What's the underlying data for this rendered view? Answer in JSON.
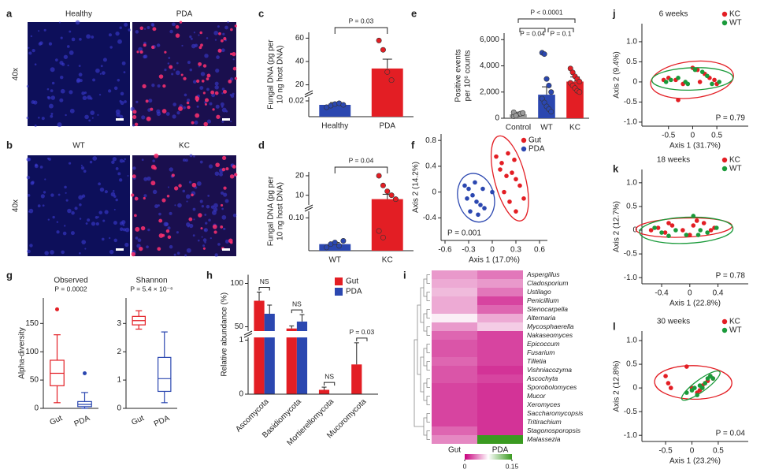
{
  "images": [
    {
      "label": "a",
      "columns": [
        "Healthy",
        "PDA"
      ],
      "side_label": "40x"
    },
    {
      "label": "b",
      "columns": [
        "WT",
        "KC"
      ],
      "side_label": "40x"
    }
  ],
  "chart_data": [
    {
      "type": "bar",
      "label": "c",
      "ylabel": [
        "Fungal DNA (pg per",
        "10 ng host DNA)"
      ],
      "categories": [
        "Healthy",
        "PDA"
      ],
      "colors": [
        "#2b47b0",
        "#e31e24"
      ],
      "values": [
        0.015,
        34
      ],
      "errors": [
        0.003,
        8
      ],
      "points": [
        [
          0.012,
          0.014,
          0.016,
          0.017,
          0.015
        ],
        [
          58,
          50,
          31,
          24
        ]
      ],
      "segments": [
        {
          "ylim": [
            0,
            0.025
          ],
          "yticks": [
            0.02
          ]
        },
        {
          "ylim": [
            15,
            65
          ],
          "yticks": [
            20,
            40,
            60
          ]
        }
      ],
      "annotation": "P = 0.03"
    },
    {
      "type": "bar",
      "label": "d",
      "ylabel": [
        "Fungal DNA (pg per",
        "10 ng host DNA)"
      ],
      "categories": [
        "WT",
        "KC"
      ],
      "colors": [
        "#2b47b0",
        "#e31e24"
      ],
      "values": [
        0.02,
        8
      ],
      "errors": [
        0.005,
        2.5
      ],
      "points": [
        [
          0.01,
          0.02,
          0.025,
          0.015,
          0.03
        ],
        [
          20,
          15,
          12,
          10,
          8,
          0.06,
          0.04
        ]
      ],
      "segments": [
        {
          "ylim": [
            0,
            0.12
          ],
          "yticks": [
            {
              "value": 0.1,
              "label": "0.10"
            }
          ]
        },
        {
          "ylim": [
            5,
            22
          ],
          "yticks": [
            10,
            20
          ]
        }
      ],
      "annotation": "P = 0.04"
    },
    {
      "type": "bar",
      "label": "e",
      "ylabel": [
        "Positive events",
        "per 10⁶ counts"
      ],
      "categories": [
        "Control",
        "WT",
        "KC"
      ],
      "colors": [
        "#9a9a9a",
        "#2b47b0",
        "#e31e24"
      ],
      "values": [
        300,
        1800,
        2800
      ],
      "errors": [
        100,
        600,
        350
      ],
      "points": [
        [
          150,
          250,
          300,
          350,
          400,
          450,
          200
        ],
        [
          5000,
          4900,
          3000,
          2500,
          2000,
          1500,
          1200,
          900,
          700,
          500
        ],
        [
          3800,
          3500,
          3200,
          3000,
          2800,
          2700,
          2500,
          2300,
          2100,
          2000
        ]
      ],
      "ylim": [
        0,
        6500
      ],
      "yticks": [
        0,
        {
          "value": 2000,
          "label": "2,000"
        },
        {
          "value": 4000,
          "label": "4,000"
        },
        {
          "value": 6000,
          "label": "6,000"
        }
      ],
      "annotations": [
        "P < 0.0001",
        "P = 0.04",
        "P = 0.1"
      ]
    },
    {
      "type": "scatter",
      "label": "f",
      "xlabel": "Axis 1 (17.0%)",
      "ylabel": "Axis 2 (14.2%)",
      "xlim": [
        -0.65,
        0.7
      ],
      "ylim": [
        -0.75,
        0.9
      ],
      "xticks": [
        -0.6,
        -0.3,
        0,
        0.3,
        0.6
      ],
      "yticks": [
        -0.4,
        0,
        0.4,
        0.8
      ],
      "annotation": "P = 0.001",
      "series": [
        {
          "name": "Gut",
          "color": "#e31e24",
          "x": [
            0.05,
            0.12,
            0.2,
            0.25,
            0.3,
            0.35,
            0.15,
            0.22,
            0.4,
            0.3,
            0.1,
            0.28,
            0.18
          ],
          "values": [
            0.55,
            0.45,
            0.6,
            0.3,
            0.2,
            0.1,
            0.0,
            -0.15,
            -0.1,
            -0.3,
            0.35,
            0.5,
            0.25
          ]
        },
        {
          "name": "PDA",
          "color": "#2b47b0",
          "x": [
            -0.35,
            -0.3,
            -0.25,
            -0.2,
            -0.15,
            -0.1,
            -0.32,
            -0.22,
            -0.12,
            -0.28,
            -0.18,
            0.0
          ],
          "values": [
            0.1,
            0.05,
            -0.05,
            -0.15,
            -0.2,
            -0.25,
            -0.1,
            0.15,
            0.05,
            -0.3,
            -0.35,
            0.0
          ]
        }
      ]
    },
    {
      "type": "box",
      "label": "g",
      "ylabel": "Alpha-diversity",
      "panels": [
        {
          "title": "Observed",
          "annotation": "P = 0.0002",
          "categories": [
            "Gut",
            "PDA"
          ],
          "colors": [
            "#e31e24",
            "#2b47b0"
          ],
          "ylim": [
            0,
            195
          ],
          "yticks": [
            0,
            50,
            100,
            150
          ],
          "boxes": [
            {
              "min": 10,
              "q1": 40,
              "median": 62,
              "q3": 85,
              "max": 130,
              "outliers": [
                175
              ]
            },
            {
              "min": 0,
              "q1": 3,
              "median": 7,
              "q3": 12,
              "max": 28,
              "outliers": [
                62
              ]
            }
          ]
        },
        {
          "title": "Shannon",
          "annotation": "P = 5.4 × 10⁻⁶",
          "categories": [
            "Gut",
            "PDA"
          ],
          "colors": [
            "#e31e24",
            "#2b47b0"
          ],
          "ylim": [
            0,
            3.9
          ],
          "yticks": [
            0,
            1,
            2,
            3
          ],
          "boxes": [
            {
              "min": 2.8,
              "q1": 2.95,
              "median": 3.1,
              "q3": 3.25,
              "max": 3.45,
              "outliers": []
            },
            {
              "min": 0.2,
              "q1": 0.6,
              "median": 1.05,
              "q3": 1.8,
              "max": 2.7,
              "outliers": []
            }
          ]
        }
      ]
    },
    {
      "type": "grouped_bar",
      "label": "h",
      "ylabel": "Relative abundance (%)",
      "categories": [
        "Ascomycota",
        "Basidiomycota",
        "Mortierellomycota",
        "Mucoromycota"
      ],
      "segments": [
        {
          "ylim": [
            0,
            1.05
          ],
          "yticks": [
            0,
            1
          ]
        },
        {
          "ylim": [
            45,
            110
          ],
          "yticks": [
            50,
            100
          ]
        }
      ],
      "series": [
        {
          "name": "Gut",
          "color": "#e31e24",
          "values": [
            80,
            48,
            0.08,
            0.55
          ],
          "errors": [
            10,
            3,
            0.05,
            0.4
          ]
        },
        {
          "name": "PDA",
          "color": "#2b47b0",
          "values": [
            65,
            56,
            0,
            0
          ],
          "errors": [
            10,
            8,
            0,
            0
          ]
        }
      ],
      "annotations": [
        "NS",
        "NS",
        "NS",
        "P = 0.03"
      ]
    },
    {
      "type": "heatmap",
      "label": "i",
      "columns": [
        "Gut",
        "PDA"
      ],
      "rows": [
        "Aspergillus",
        "Cladosporium",
        "Ustilago",
        "Penicillium",
        "Stenocarpella",
        "Alternaria",
        "Mycosphaerella",
        "Nakaseomyces",
        "Epicoccum",
        "Fusarium",
        "Tilletia",
        "Vishniacozyma",
        "Ascochyta",
        "Sporobolomyces",
        "Mucor",
        "Xeromyces",
        "Saccharomycopsis",
        "Tritirachium",
        "Stagonosporopsis",
        "Malassezia"
      ],
      "values": [
        [
          0.045,
          0.035
        ],
        [
          0.05,
          0.045
        ],
        [
          0.055,
          0.035
        ],
        [
          0.05,
          0.02
        ],
        [
          0.05,
          0.03
        ],
        [
          0.07,
          0.05
        ],
        [
          0.045,
          0.06
        ],
        [
          0.03,
          0.02
        ],
        [
          0.025,
          0.02
        ],
        [
          0.025,
          0.02
        ],
        [
          0.03,
          0.02
        ],
        [
          0.025,
          0.015
        ],
        [
          0.025,
          0.02
        ],
        [
          0.02,
          0.015
        ],
        [
          0.02,
          0.015
        ],
        [
          0.02,
          0.015
        ],
        [
          0.02,
          0.015
        ],
        [
          0.02,
          0.015
        ],
        [
          0.03,
          0.015
        ],
        [
          0.04,
          0.15
        ]
      ],
      "colors": [
        "#c8007d",
        "#ffffff",
        "#3a9a20"
      ],
      "colorbar": {
        "lim": [
          0,
          0.15
        ],
        "ticks": [
          0,
          0.15
        ]
      }
    },
    {
      "type": "scatter",
      "label": "j",
      "title": "6 weeks",
      "xlabel": "Axis 1 (31.7%)",
      "ylabel": "Axis 2 (9.4%)",
      "xlim": [
        -1.05,
        1.15
      ],
      "ylim": [
        -1.1,
        1.45
      ],
      "xticks": [
        -0.5,
        0,
        0.5
      ],
      "yticks": [
        {
          "value": -1,
          "label": "-1.0"
        },
        -0.5,
        0,
        0.5,
        {
          "value": 1,
          "label": "1.0"
        }
      ],
      "annotation": "P = 0.79",
      "series": [
        {
          "name": "KC",
          "color": "#e31e24",
          "x": [
            -0.6,
            -0.5,
            -0.35,
            -0.2,
            0.0,
            0.1,
            0.25,
            0.35,
            0.45,
            0.5,
            -0.3,
            0.15
          ],
          "values": [
            0.05,
            0.1,
            0.05,
            -0.05,
            0.35,
            0.3,
            0.2,
            0.1,
            0.05,
            -0.05,
            -0.45,
            0.0
          ]
        },
        {
          "name": "WT",
          "color": "#1a9a3a",
          "x": [
            -0.55,
            -0.45,
            -0.3,
            -0.15,
            0.05,
            0.2,
            0.3,
            0.4,
            0.55,
            -0.1
          ],
          "values": [
            0.0,
            0.05,
            0.1,
            0.0,
            0.3,
            0.25,
            0.15,
            -0.05,
            0.0,
            -0.05
          ]
        }
      ]
    },
    {
      "type": "scatter",
      "label": "k",
      "title": "18 weeks",
      "xlabel": "Axis 1 (22.8%)",
      "ylabel": "Axis 2 (12.7%)",
      "xlim": [
        -0.68,
        0.83
      ],
      "ylim": [
        -1.13,
        1.28
      ],
      "xticks": [
        -0.4,
        0,
        0.4
      ],
      "yticks": [
        {
          "value": -1,
          "label": "-1.0"
        },
        -0.5,
        0,
        0.5,
        {
          "value": 1,
          "label": "1.0"
        }
      ],
      "annotation": "P = 0.78",
      "series": [
        {
          "name": "KC",
          "color": "#e31e24",
          "x": [
            -0.55,
            -0.45,
            -0.35,
            -0.25,
            -0.1,
            0.0,
            0.1,
            0.2,
            0.3,
            0.35,
            -0.3,
            0.05
          ],
          "values": [
            0.0,
            0.05,
            -0.05,
            0.1,
            0.0,
            -0.1,
            0.2,
            0.15,
            0.0,
            0.05,
            0.15,
            0.1
          ]
        },
        {
          "name": "WT",
          "color": "#1a9a3a",
          "x": [
            -0.5,
            -0.4,
            -0.2,
            -0.05,
            0.05,
            0.15,
            0.25,
            0.38,
            -0.3,
            0.12
          ],
          "values": [
            0.05,
            -0.05,
            0.0,
            -0.1,
            0.3,
            0.0,
            -0.05,
            0.05,
            -0.12,
            -0.1
          ]
        }
      ]
    },
    {
      "type": "scatter",
      "label": "l",
      "title": "30 weeks",
      "xlabel": "Axis 1 (23.2%)",
      "ylabel": "Axis 2 (12.8%)",
      "xlim": [
        -0.95,
        1.07
      ],
      "ylim": [
        -1.13,
        1.2
      ],
      "xticks": [
        -0.5,
        0,
        0.5
      ],
      "yticks": [
        {
          "value": -1,
          "label": "-1.0"
        },
        -0.5,
        0,
        0.5,
        {
          "value": 1,
          "label": "1.0"
        }
      ],
      "annotation": "P = 0.04",
      "series": [
        {
          "name": "KC",
          "color": "#e31e24",
          "x": [
            -0.5,
            -0.45,
            -0.4,
            -0.1,
            0.0,
            0.1,
            0.2,
            0.3,
            0.35,
            0.4,
            0.15,
            0.25
          ],
          "values": [
            0.25,
            0.1,
            0.0,
            0.45,
            0.0,
            -0.1,
            0.05,
            0.15,
            0.25,
            0.2,
            -0.05,
            0.1
          ]
        },
        {
          "name": "WT",
          "color": "#1a9a3a",
          "x": [
            -0.1,
            0.0,
            0.05,
            0.15,
            0.25,
            0.3,
            0.35,
            0.4,
            0.2,
            0.1
          ],
          "values": [
            -0.1,
            -0.05,
            0.0,
            0.05,
            0.1,
            0.2,
            0.25,
            0.2,
            0.0,
            -0.15
          ]
        }
      ]
    }
  ]
}
